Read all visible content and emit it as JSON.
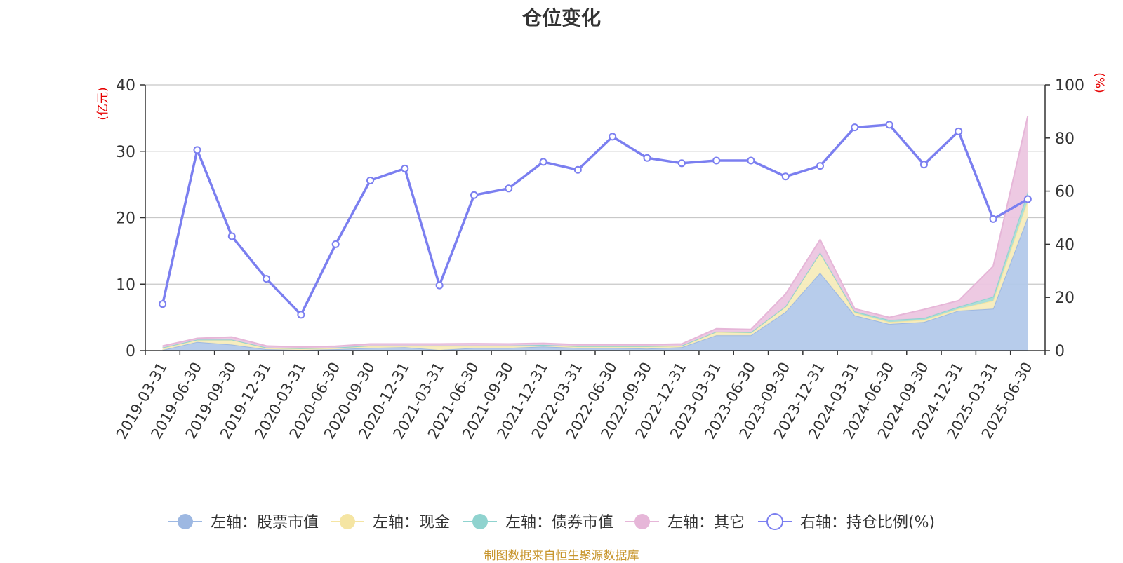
{
  "chart_data": {
    "type": "area",
    "title": "仓位变化",
    "source_note": "制图数据来自恒生聚源数据库",
    "categories": [
      "2019-03-31",
      "2019-06-30",
      "2019-09-30",
      "2019-12-31",
      "2020-03-31",
      "2020-06-30",
      "2020-09-30",
      "2020-12-31",
      "2021-03-31",
      "2021-06-30",
      "2021-09-30",
      "2021-12-31",
      "2022-03-31",
      "2022-06-30",
      "2022-09-30",
      "2022-12-31",
      "2023-03-31",
      "2023-06-30",
      "2023-09-30",
      "2023-12-31",
      "2024-03-31",
      "2024-06-30",
      "2024-09-30",
      "2024-12-31",
      "2025-03-31",
      "2025-06-30"
    ],
    "left_axis": {
      "label": "(亿元)",
      "min": 0,
      "max": 40,
      "ticks": [
        0,
        10,
        20,
        30,
        40
      ]
    },
    "right_axis": {
      "label": "(%)",
      "min": 0,
      "max": 100,
      "ticks": [
        0,
        20,
        40,
        60,
        80,
        100
      ]
    },
    "series": [
      {
        "name": "左轴：股票市值",
        "axis": "left",
        "stack": true,
        "color": "#9db8e2",
        "fill": "#b3c9ea",
        "values": [
          0.1,
          1.3,
          0.9,
          0.2,
          0.1,
          0.2,
          0.4,
          0.5,
          0.1,
          0.4,
          0.4,
          0.6,
          0.4,
          0.4,
          0.3,
          0.5,
          2.3,
          2.3,
          5.8,
          11.7,
          5.3,
          4.0,
          4.3,
          6.0,
          6.3,
          20.1
        ]
      },
      {
        "name": "左轴：现金",
        "axis": "left",
        "stack": true,
        "color": "#f5e5a3",
        "fill": "#f7ecbc",
        "values": [
          0.3,
          0.3,
          0.7,
          0.2,
          0.2,
          0.2,
          0.3,
          0.2,
          0.6,
          0.3,
          0.3,
          0.2,
          0.2,
          0.2,
          0.3,
          0.2,
          0.5,
          0.4,
          0.8,
          3.0,
          0.4,
          0.3,
          0.3,
          0.3,
          1.2,
          2.5
        ]
      },
      {
        "name": "左轴：债券市值",
        "axis": "left",
        "stack": true,
        "color": "#8fd3cf",
        "fill": "#a6dcd8",
        "values": [
          0.05,
          0.05,
          0.05,
          0.05,
          0.05,
          0.05,
          0.05,
          0.05,
          0.05,
          0.05,
          0.05,
          0.05,
          0.05,
          0.05,
          0.05,
          0.05,
          0.05,
          0.05,
          0.05,
          0.05,
          0.2,
          0.3,
          0.3,
          0.3,
          0.6,
          1.3
        ]
      },
      {
        "name": "左轴：其它",
        "axis": "left",
        "stack": true,
        "color": "#e6b6d8",
        "fill": "#ecc6e0",
        "values": [
          0.25,
          0.2,
          0.4,
          0.25,
          0.2,
          0.2,
          0.25,
          0.25,
          0.25,
          0.3,
          0.25,
          0.25,
          0.25,
          0.25,
          0.25,
          0.25,
          0.45,
          0.45,
          1.85,
          1.95,
          0.4,
          0.4,
          1.3,
          0.9,
          4.6,
          11.4
        ]
      },
      {
        "name": "右轴：持仓比例(%)",
        "axis": "right",
        "stack": false,
        "color": "#7b7ff0",
        "values": [
          17.5,
          75.5,
          43.0,
          27.0,
          13.5,
          40.0,
          64.0,
          68.5,
          24.5,
          58.5,
          61.0,
          71.0,
          68.0,
          80.5,
          72.5,
          70.5,
          71.5,
          71.5,
          65.5,
          69.5,
          84.0,
          85.0,
          70.0,
          82.5,
          49.5,
          57.0
        ]
      }
    ]
  }
}
